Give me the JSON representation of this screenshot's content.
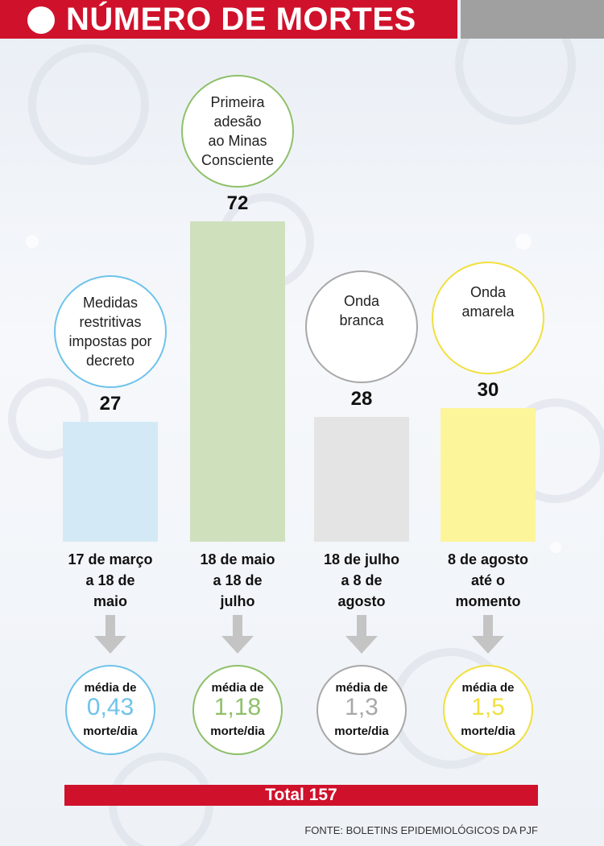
{
  "header": {
    "title": "NÚMERO DE MORTES"
  },
  "chart_data": {
    "type": "bar",
    "title": "NÚMERO DE MORTES",
    "categories": [
      "17 de março a 18 de maio",
      "18 de maio a 18 de julho",
      "18 de julho a 8 de agosto",
      "8 de agosto até o momento"
    ],
    "values": [
      27,
      72,
      28,
      30
    ],
    "ylim": [
      0,
      72
    ],
    "grid": false,
    "colors": [
      "#d3eaf6",
      "#cfe0bd",
      "#e4e4e4",
      "#fdf59a"
    ]
  },
  "bars": [
    {
      "value": "27",
      "event": "Medidas\nrestritivas\nimpostas por\ndecreto",
      "period": "17 de março\na 18 de\nmaio",
      "avg_label": "média de",
      "avg_value": "0,43",
      "avg_unit": "morte/dia",
      "color": "#d3eaf6",
      "accent": "#6fc3ea"
    },
    {
      "value": "72",
      "event": "Primeira\nadesão\nao Minas\nConsciente",
      "period": "18 de maio\na 18 de\njulho",
      "avg_label": "média de",
      "avg_value": "1,18",
      "avg_unit": "morte/dia",
      "color": "#cfe0bd",
      "accent": "#8fc06a"
    },
    {
      "value": "28",
      "event": "Onda\nbranca",
      "period": "18 de julho\na 8 de\nagosto",
      "avg_label": "média de",
      "avg_value": "1,3",
      "avg_unit": "morte/dia",
      "color": "#e4e4e4",
      "accent": "#a8a8a8"
    },
    {
      "value": "30",
      "event": "Onda\namarela",
      "period": "8 de agosto\naté o\nmomento",
      "avg_label": "média de",
      "avg_value": "1,5",
      "avg_unit": "morte/dia",
      "color": "#fdf59a",
      "accent": "#f0e040"
    }
  ],
  "total": {
    "label": "Total  157"
  },
  "source": "FONTE: BOLETINS EPIDEMIOLÓGICOS DA PJF"
}
